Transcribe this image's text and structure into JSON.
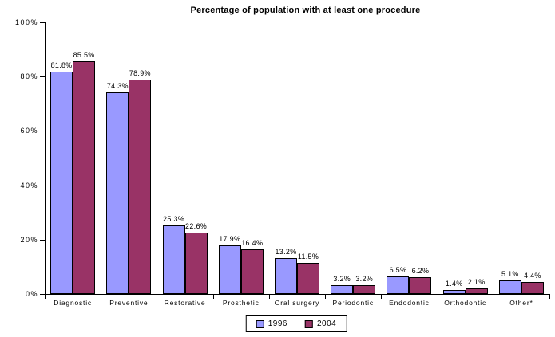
{
  "chart_data": {
    "type": "bar",
    "title": "Percentage of population with at least one procedure",
    "categories": [
      "Diagnostic",
      "Preventive",
      "Restorative",
      "Prosthetic",
      "Oral surgery",
      "Periodontic",
      "Endodontic",
      "Orthodontic",
      "Other*"
    ],
    "series": [
      {
        "name": "1996",
        "color": "#9999FF",
        "values": [
          81.8,
          74.3,
          25.3,
          17.9,
          13.2,
          3.2,
          6.5,
          1.4,
          5.1
        ]
      },
      {
        "name": "2004",
        "color": "#993366",
        "values": [
          85.5,
          78.9,
          22.6,
          16.4,
          11.5,
          3.2,
          6.2,
          2.1,
          4.4
        ]
      }
    ],
    "data_labels": true,
    "label_suffix": "%",
    "ylim": [
      0,
      100
    ],
    "ytick_values": [
      0,
      20,
      40,
      60,
      80,
      100
    ],
    "ytick_labels": [
      "0%",
      "20%",
      "40%",
      "60%",
      "80%",
      "100%"
    ],
    "grid": false,
    "legend_position": "bottom",
    "bar_border_color": "#000000",
    "axis_color": "#000000",
    "background_color": "#ffffff"
  }
}
